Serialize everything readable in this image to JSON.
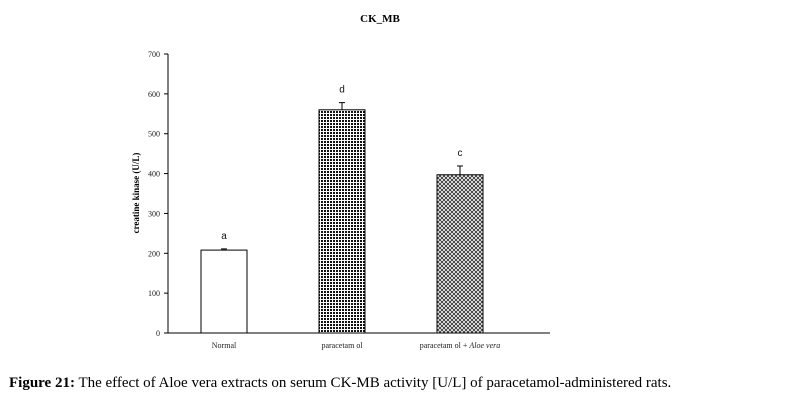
{
  "chart_data": {
    "type": "bar",
    "title": "CK_MB",
    "ylabel": "creatine kinase (U/L)",
    "xlabel": "",
    "ylim": [
      0,
      700
    ],
    "yticks": [
      0,
      100,
      200,
      300,
      400,
      500,
      600,
      700
    ],
    "categories": [
      "Normal",
      "paracetamol",
      "paracetamol + Aloe vera"
    ],
    "category_parts": [
      {
        "main": "Normal",
        "italic": ""
      },
      {
        "main": "paracetam ol",
        "italic": ""
      },
      {
        "main": "paracetam ol + ",
        "italic": "Aloe vera"
      }
    ],
    "values": [
      208,
      560,
      397
    ],
    "errors": [
      3,
      18,
      22
    ],
    "significance_labels": [
      "a",
      "d",
      "c"
    ],
    "fills": [
      "white",
      "dense-dots",
      "crosshatch"
    ],
    "grid": false,
    "legend": "none"
  },
  "caption": {
    "label": "Figure 21:",
    "text": " The effect of Aloe vera extracts on serum CK-MB activity [U/L] of paracetamol-administered rats."
  }
}
